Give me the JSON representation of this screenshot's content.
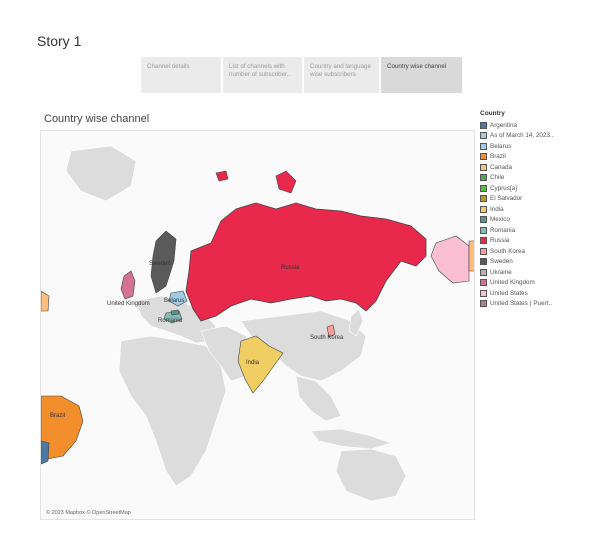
{
  "story": {
    "title": "Story 1"
  },
  "tabs": [
    {
      "label": "Channel details"
    },
    {
      "label": "List of channels with number of subscriber.."
    },
    {
      "label": "Country and language wise subscribers"
    },
    {
      "label": "Country wise channel"
    }
  ],
  "map": {
    "title": "Country wise channel",
    "attribution": "© 2023 Mapbox © OpenStreetMap",
    "labels": {
      "russia": "Russia",
      "sweden": "Sweden",
      "united_kingdom": "United Kingdom",
      "belarus": "Belarus",
      "romania": "Romania",
      "india": "India",
      "south_korea": "South Korea",
      "brazil": "Brazil"
    }
  },
  "legend": {
    "title": "Country",
    "items": [
      {
        "label": "Argentina",
        "color": "#4e79a7"
      },
      {
        "label": "As of March 14, 2023..",
        "color": "#a0cbe8"
      },
      {
        "label": "Belarus",
        "color": "#a0cbe8"
      },
      {
        "label": "Brazil",
        "color": "#f28e2b"
      },
      {
        "label": "Canada",
        "color": "#ffbe7d"
      },
      {
        "label": "Chile",
        "color": "#59a14f"
      },
      {
        "label": "Cyprus[a]",
        "color": "#4fc13a"
      },
      {
        "label": "El Salvador",
        "color": "#b6992d"
      },
      {
        "label": "India",
        "color": "#f1ce63"
      },
      {
        "label": "Mexico",
        "color": "#499894"
      },
      {
        "label": "Romania",
        "color": "#86bcb6"
      },
      {
        "label": "Russia",
        "color": "#e8294b"
      },
      {
        "label": "South Korea",
        "color": "#ff9d9a"
      },
      {
        "label": "Sweden",
        "color": "#5a5a5a"
      },
      {
        "label": "Ukraine",
        "color": "#bab0ac"
      },
      {
        "label": "United Kingdom",
        "color": "#d37295"
      },
      {
        "label": "United States",
        "color": "#fabfd2"
      },
      {
        "label": "United States ( Puert..",
        "color": "#b07aa1"
      }
    ]
  }
}
